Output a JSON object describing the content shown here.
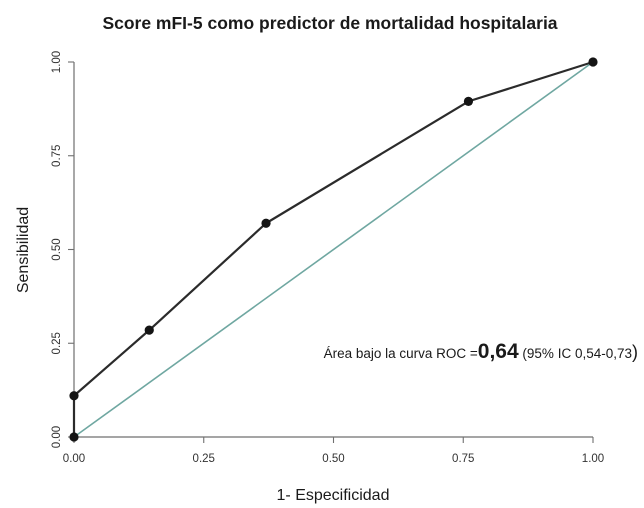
{
  "chart_data": {
    "type": "line",
    "title": "Score mFI-5 como predictor de mortalidad hospitalaria",
    "xlabel": "1- Especificidad",
    "ylabel": "Sensibilidad",
    "xlim": [
      0,
      1
    ],
    "ylim": [
      0,
      1
    ],
    "x_ticks": [
      "0.00",
      "0.25",
      "0.50",
      "0.75",
      "1.00"
    ],
    "y_ticks": [
      "0.00",
      "0.25",
      "0.50",
      "0.75",
      "1.00"
    ],
    "grid": false,
    "series": [
      {
        "color": "#2b2b2b",
        "marker": "circle",
        "points": [
          {
            "x": 0.0,
            "y": 0.0
          },
          {
            "x": 0.0,
            "y": 0.11
          },
          {
            "x": 0.145,
            "y": 0.285
          },
          {
            "x": 0.37,
            "y": 0.57
          },
          {
            "x": 0.76,
            "y": 0.895
          },
          {
            "x": 1.0,
            "y": 1.0
          }
        ]
      },
      {
        "color": "#6fa7a1",
        "marker": "none",
        "points": [
          {
            "x": 0.0,
            "y": 0.0
          },
          {
            "x": 1.0,
            "y": 1.0
          }
        ]
      }
    ],
    "annotation": {
      "prefix": "Área bajo la curva ROC =",
      "value": "0,64",
      "suffix": " (95% IC 0,54-0,73",
      "close": ")"
    }
  }
}
